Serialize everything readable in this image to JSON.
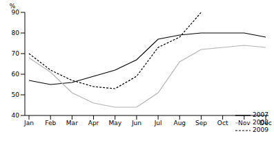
{
  "chart_data": {
    "type": "line",
    "y_label": "%",
    "categories": [
      "Jan",
      "Feb",
      "Mar",
      "Apr",
      "May",
      "Jun",
      "Jul",
      "Aug",
      "Sep",
      "Oct",
      "Nov",
      "Dec"
    ],
    "series": [
      {
        "name": "2007",
        "color": "#000000",
        "line_style": "solid",
        "values": [
          57,
          55,
          56,
          59,
          62,
          67,
          77,
          79,
          80,
          80,
          80,
          78
        ]
      },
      {
        "name": "2008",
        "color": "#b3b3b3",
        "line_style": "solid",
        "values": [
          68,
          61,
          51,
          46,
          44,
          44,
          51,
          66,
          72,
          73,
          74,
          73
        ]
      },
      {
        "name": "2009",
        "color": "#000000",
        "line_style": "dashed",
        "values": [
          70,
          62,
          57,
          54,
          53,
          59,
          73,
          78,
          90,
          null,
          null,
          null
        ]
      }
    ],
    "ylim": [
      40,
      90
    ],
    "yticks": [
      40,
      50,
      60,
      70,
      80,
      90
    ],
    "grid": false,
    "legend": "bottom-right"
  }
}
